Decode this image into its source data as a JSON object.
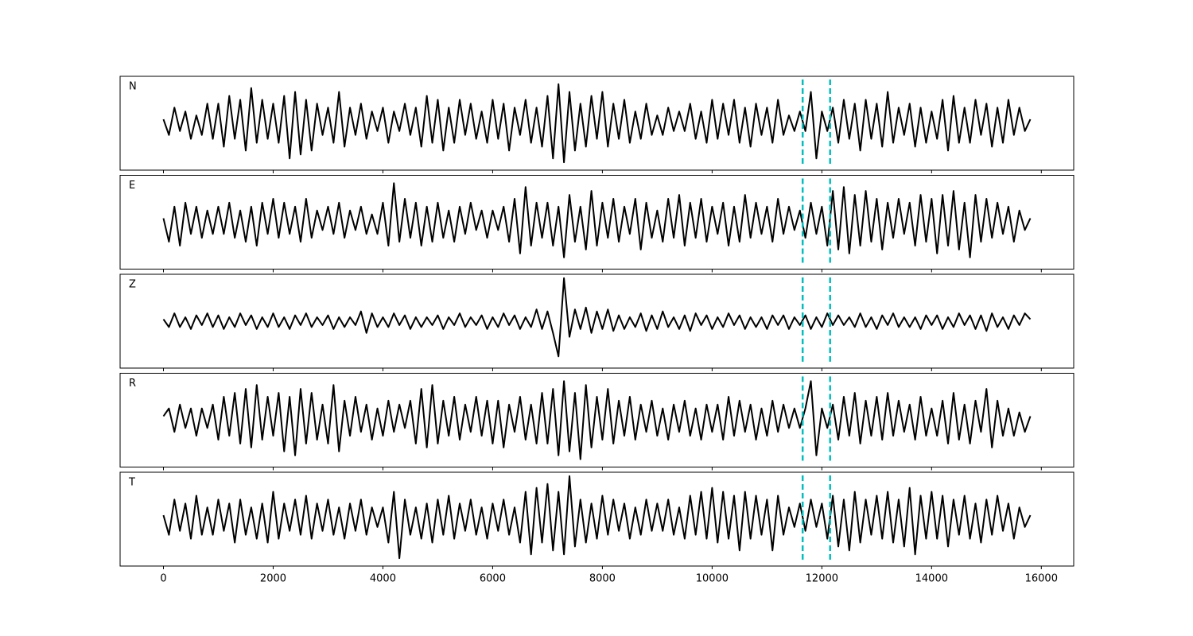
{
  "chart_data": {
    "type": "line",
    "layout": "stacked",
    "x": [
      0,
      100,
      200,
      300,
      400,
      500,
      600,
      700,
      800,
      900,
      1000,
      1100,
      1200,
      1300,
      1400,
      1500,
      1600,
      1700,
      1800,
      1900,
      2000,
      2100,
      2200,
      2300,
      2400,
      2500,
      2600,
      2700,
      2800,
      2900,
      3000,
      3100,
      3200,
      3300,
      3400,
      3500,
      3600,
      3700,
      3800,
      3900,
      4000,
      4100,
      4200,
      4300,
      4400,
      4500,
      4600,
      4700,
      4800,
      4900,
      5000,
      5100,
      5200,
      5300,
      5400,
      5500,
      5600,
      5700,
      5800,
      5900,
      6000,
      6100,
      6200,
      6300,
      6400,
      6500,
      6600,
      6700,
      6800,
      6900,
      7000,
      7100,
      7200,
      7300,
      7400,
      7500,
      7600,
      7700,
      7800,
      7900,
      8000,
      8100,
      8200,
      8300,
      8400,
      8500,
      8600,
      8700,
      8800,
      8900,
      9000,
      9100,
      9200,
      9300,
      9400,
      9500,
      9600,
      9700,
      9800,
      9900,
      10000,
      10100,
      10200,
      10300,
      10400,
      10500,
      10600,
      10700,
      10800,
      10900,
      11000,
      11100,
      11200,
      11300,
      11400,
      11500,
      11600,
      11700,
      11800,
      11900,
      12000,
      12100,
      12200,
      12300,
      12400,
      12500,
      12600,
      12700,
      12800,
      12900,
      13000,
      13100,
      13200,
      13300,
      13400,
      13500,
      13600,
      13700,
      13800,
      13900,
      14000,
      14100,
      14200,
      14300,
      14400,
      14500,
      14600,
      14700,
      14800,
      14900,
      15000,
      15100,
      15200,
      15300,
      15400,
      15500,
      15600,
      15700,
      15800
    ],
    "series": [
      {
        "name": "N",
        "color": "#000000",
        "values": [
          0.1,
          -0.3,
          0.4,
          -0.2,
          0.3,
          -0.4,
          0.2,
          -0.3,
          0.5,
          -0.4,
          0.5,
          -0.6,
          0.7,
          -0.4,
          0.6,
          -0.7,
          0.9,
          -0.5,
          0.6,
          -0.4,
          0.5,
          -0.5,
          0.7,
          -0.9,
          0.8,
          -0.8,
          0.6,
          -0.7,
          0.5,
          -0.3,
          0.4,
          -0.5,
          0.8,
          -0.6,
          0.4,
          -0.3,
          0.5,
          -0.4,
          0.3,
          -0.2,
          0.4,
          -0.5,
          0.3,
          -0.2,
          0.5,
          -0.3,
          0.4,
          -0.6,
          0.7,
          -0.5,
          0.6,
          -0.7,
          0.4,
          -0.5,
          0.6,
          -0.3,
          0.5,
          -0.4,
          0.3,
          -0.5,
          0.6,
          -0.4,
          0.5,
          -0.7,
          0.4,
          -0.3,
          0.6,
          -0.5,
          0.4,
          -0.6,
          0.7,
          -0.9,
          1.0,
          -1.0,
          0.8,
          -0.7,
          0.5,
          -0.6,
          0.7,
          -0.4,
          0.8,
          -0.6,
          0.5,
          -0.4,
          0.6,
          -0.5,
          0.3,
          -0.4,
          0.5,
          -0.3,
          0.2,
          -0.3,
          0.4,
          -0.2,
          0.3,
          -0.2,
          0.5,
          -0.4,
          0.3,
          -0.5,
          0.6,
          -0.4,
          0.5,
          -0.3,
          0.6,
          -0.5,
          0.4,
          -0.6,
          0.5,
          -0.3,
          0.4,
          -0.5,
          0.6,
          -0.3,
          0.2,
          -0.2,
          0.3,
          -0.2,
          0.8,
          -0.9,
          0.3,
          -0.2,
          0.4,
          -0.5,
          0.6,
          -0.4,
          0.5,
          -0.7,
          0.6,
          -0.4,
          0.5,
          -0.6,
          0.8,
          -0.5,
          0.4,
          -0.3,
          0.5,
          -0.6,
          0.4,
          -0.5,
          0.3,
          -0.4,
          0.6,
          -0.7,
          0.7,
          -0.5,
          0.4,
          -0.5,
          0.6,
          -0.3,
          0.5,
          -0.6,
          0.4,
          -0.5,
          0.6,
          -0.3,
          0.4,
          -0.2,
          0.1
        ]
      },
      {
        "name": "E",
        "color": "#000000",
        "values": [
          0.1,
          -0.5,
          0.4,
          -0.6,
          0.5,
          -0.3,
          0.4,
          -0.4,
          0.3,
          -0.3,
          0.4,
          -0.3,
          0.5,
          -0.4,
          0.3,
          -0.5,
          0.4,
          -0.6,
          0.5,
          -0.3,
          0.6,
          -0.4,
          0.5,
          -0.3,
          0.4,
          -0.5,
          0.6,
          -0.4,
          0.3,
          -0.2,
          0.4,
          -0.3,
          0.5,
          -0.4,
          0.3,
          -0.2,
          0.4,
          -0.3,
          0.2,
          -0.3,
          0.5,
          -0.6,
          1.0,
          -0.5,
          0.6,
          -0.4,
          0.5,
          -0.6,
          0.4,
          -0.5,
          0.5,
          -0.4,
          0.3,
          -0.5,
          0.4,
          -0.3,
          0.5,
          -0.2,
          0.3,
          -0.4,
          0.3,
          -0.2,
          0.4,
          -0.5,
          0.6,
          -0.8,
          0.9,
          -0.6,
          0.5,
          -0.4,
          0.5,
          -0.6,
          0.4,
          -0.9,
          0.7,
          -0.5,
          0.4,
          -0.7,
          0.8,
          -0.6,
          0.5,
          -0.4,
          0.6,
          -0.5,
          0.4,
          -0.3,
          0.6,
          -0.7,
          0.5,
          -0.4,
          0.3,
          -0.5,
          0.6,
          -0.4,
          0.7,
          -0.6,
          0.5,
          -0.4,
          0.6,
          -0.5,
          0.4,
          -0.3,
          0.5,
          -0.6,
          0.4,
          -0.5,
          0.7,
          -0.4,
          0.5,
          -0.3,
          0.4,
          -0.5,
          0.6,
          -0.3,
          0.4,
          -0.2,
          0.3,
          -0.4,
          0.5,
          -0.3,
          0.4,
          -0.6,
          0.8,
          -0.7,
          0.9,
          -0.8,
          0.7,
          -0.6,
          0.8,
          -0.5,
          0.6,
          -0.7,
          0.5,
          -0.4,
          0.6,
          -0.3,
          0.5,
          -0.6,
          0.7,
          -0.5,
          0.6,
          -0.8,
          0.7,
          -0.6,
          0.8,
          -0.7,
          0.5,
          -0.9,
          0.7,
          -0.5,
          0.6,
          -0.4,
          0.5,
          -0.3,
          0.4,
          -0.5,
          0.3,
          -0.2,
          0.1
        ]
      },
      {
        "name": "Z",
        "color": "#000000",
        "values": [
          0.05,
          -0.15,
          0.2,
          -0.15,
          0.1,
          -0.2,
          0.15,
          -0.1,
          0.2,
          -0.15,
          0.15,
          -0.2,
          0.1,
          -0.15,
          0.2,
          -0.1,
          0.15,
          -0.2,
          0.1,
          -0.15,
          0.2,
          -0.15,
          0.1,
          -0.2,
          0.15,
          -0.1,
          0.2,
          -0.15,
          0.1,
          -0.1,
          0.15,
          -0.2,
          0.1,
          -0.15,
          0.1,
          -0.1,
          0.25,
          -0.3,
          0.2,
          -0.15,
          0.1,
          -0.15,
          0.2,
          -0.1,
          0.15,
          -0.2,
          0.1,
          -0.15,
          0.1,
          -0.1,
          0.15,
          -0.2,
          0.1,
          -0.1,
          0.2,
          -0.15,
          0.1,
          -0.1,
          0.15,
          -0.2,
          0.1,
          -0.15,
          0.2,
          -0.1,
          0.15,
          -0.2,
          0.1,
          -0.15,
          0.3,
          -0.2,
          0.25,
          -0.3,
          -0.9,
          1.1,
          -0.4,
          0.3,
          -0.2,
          0.35,
          -0.3,
          0.25,
          -0.2,
          0.3,
          -0.25,
          0.15,
          -0.2,
          0.1,
          -0.15,
          0.2,
          -0.25,
          0.15,
          -0.2,
          0.25,
          -0.15,
          0.1,
          -0.2,
          0.15,
          -0.25,
          0.2,
          -0.1,
          0.15,
          -0.2,
          0.1,
          -0.15,
          0.2,
          -0.1,
          0.15,
          -0.2,
          0.1,
          -0.15,
          0.1,
          -0.2,
          0.15,
          -0.1,
          0.15,
          -0.2,
          0.1,
          -0.1,
          0.15,
          -0.2,
          0.1,
          -0.15,
          0.2,
          -0.1,
          0.15,
          -0.1,
          0.1,
          -0.15,
          0.2,
          -0.15,
          0.1,
          -0.2,
          0.15,
          -0.1,
          0.2,
          -0.15,
          0.1,
          -0.15,
          0.1,
          -0.2,
          0.15,
          -0.1,
          0.15,
          -0.2,
          0.1,
          -0.15,
          0.2,
          -0.1,
          0.15,
          -0.2,
          0.15,
          -0.25,
          0.2,
          -0.15,
          0.1,
          -0.2,
          0.15,
          -0.1,
          0.2,
          0.05
        ]
      },
      {
        "name": "R",
        "color": "#000000",
        "values": [
          0.1,
          0.3,
          -0.3,
          0.4,
          -0.2,
          0.3,
          -0.4,
          0.3,
          -0.2,
          0.4,
          -0.5,
          0.6,
          -0.4,
          0.7,
          -0.6,
          0.8,
          -0.7,
          0.9,
          -0.5,
          0.6,
          -0.4,
          0.7,
          -0.8,
          0.6,
          -0.9,
          0.8,
          -0.6,
          0.7,
          -0.5,
          0.4,
          -0.6,
          0.9,
          -0.8,
          0.5,
          -0.4,
          0.6,
          -0.3,
          0.4,
          -0.5,
          0.3,
          -0.4,
          0.5,
          -0.3,
          0.4,
          -0.2,
          0.5,
          -0.6,
          0.8,
          -0.7,
          0.9,
          -0.6,
          0.5,
          -0.4,
          0.6,
          -0.5,
          0.4,
          -0.3,
          0.6,
          -0.4,
          0.5,
          -0.6,
          0.5,
          -0.7,
          0.4,
          -0.3,
          0.6,
          -0.5,
          0.4,
          -0.6,
          0.7,
          -0.6,
          0.8,
          -0.9,
          1.0,
          -0.8,
          0.7,
          -1.0,
          0.9,
          -0.7,
          0.6,
          -0.5,
          0.8,
          -0.6,
          0.5,
          -0.4,
          0.6,
          -0.5,
          0.4,
          -0.3,
          0.5,
          -0.4,
          0.3,
          -0.5,
          0.4,
          -0.3,
          0.5,
          -0.4,
          0.3,
          -0.5,
          0.4,
          -0.3,
          0.4,
          -0.5,
          0.6,
          -0.4,
          0.5,
          -0.3,
          0.4,
          -0.5,
          0.3,
          -0.4,
          0.5,
          -0.3,
          0.4,
          -0.2,
          0.3,
          -0.2,
          0.3,
          1.0,
          -0.9,
          0.3,
          -0.2,
          0.4,
          -0.5,
          0.6,
          -0.4,
          0.7,
          -0.6,
          0.5,
          -0.4,
          0.6,
          -0.5,
          0.7,
          -0.4,
          0.5,
          -0.3,
          0.4,
          -0.5,
          0.6,
          -0.4,
          0.3,
          -0.4,
          0.5,
          -0.6,
          0.7,
          -0.5,
          0.4,
          -0.6,
          0.5,
          -0.3,
          0.8,
          -0.7,
          0.5,
          -0.4,
          0.3,
          -0.4,
          0.2,
          -0.3,
          0.1
        ]
      },
      {
        "name": "T",
        "color": "#000000",
        "values": [
          0.1,
          -0.4,
          0.5,
          -0.3,
          0.4,
          -0.5,
          0.6,
          -0.4,
          0.3,
          -0.4,
          0.5,
          -0.3,
          0.4,
          -0.6,
          0.5,
          -0.4,
          0.3,
          -0.5,
          0.4,
          -0.6,
          0.7,
          -0.5,
          0.4,
          -0.3,
          0.5,
          -0.4,
          0.6,
          -0.5,
          0.4,
          -0.3,
          0.5,
          -0.4,
          0.3,
          -0.5,
          0.4,
          -0.3,
          0.5,
          -0.4,
          0.3,
          -0.2,
          0.3,
          -0.6,
          0.7,
          -1.0,
          0.5,
          -0.4,
          0.3,
          -0.5,
          0.4,
          -0.6,
          0.5,
          -0.4,
          0.6,
          -0.5,
          0.4,
          -0.3,
          0.5,
          -0.4,
          0.3,
          -0.5,
          0.4,
          -0.3,
          0.5,
          -0.4,
          0.3,
          -0.6,
          0.7,
          -0.9,
          0.8,
          -0.6,
          0.9,
          -0.8,
          0.7,
          -0.9,
          1.1,
          -0.7,
          0.5,
          -0.6,
          0.4,
          -0.5,
          0.6,
          -0.4,
          0.5,
          -0.3,
          0.4,
          -0.5,
          0.3,
          -0.4,
          0.5,
          -0.3,
          0.4,
          -0.3,
          0.5,
          -0.4,
          0.3,
          -0.5,
          0.6,
          -0.4,
          0.7,
          -0.5,
          0.8,
          -0.6,
          0.7,
          -0.5,
          0.6,
          -0.8,
          0.7,
          -0.5,
          0.6,
          -0.4,
          0.5,
          -0.8,
          0.6,
          -0.4,
          0.3,
          -0.2,
          0.4,
          -0.3,
          0.5,
          -0.2,
          0.4,
          -0.5,
          0.6,
          -0.7,
          0.5,
          -0.8,
          0.7,
          -0.6,
          0.5,
          -0.4,
          0.6,
          -0.5,
          0.7,
          -0.6,
          0.5,
          -0.7,
          0.8,
          -0.9,
          0.6,
          -0.5,
          0.7,
          -0.5,
          0.6,
          -0.7,
          0.5,
          -0.4,
          0.6,
          -0.5,
          0.4,
          -0.6,
          0.5,
          -0.4,
          0.6,
          -0.3,
          0.4,
          -0.5,
          0.3,
          -0.2,
          0.1
        ]
      }
    ],
    "xlim": [
      -790,
      16590
    ],
    "xticks": [
      0,
      2000,
      4000,
      6000,
      8000,
      10000,
      12000,
      14000,
      16000
    ],
    "ylim": [
      -1.2,
      1.2
    ],
    "vlines": [
      11650,
      12150
    ],
    "vline_color": "#00bfbf"
  }
}
